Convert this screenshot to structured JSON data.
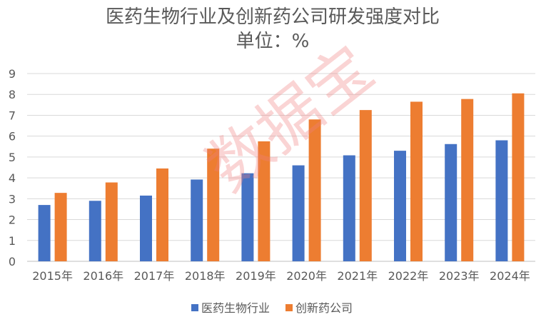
{
  "chart_data": {
    "type": "bar",
    "title": "医药生物行业及创新药公司研发强度对比",
    "subtitle": "单位：%",
    "categories": [
      "2015年",
      "2016年",
      "2017年",
      "2018年",
      "2019年",
      "2020年",
      "2021年",
      "2022年",
      "2023年",
      "2024年"
    ],
    "series": [
      {
        "name": "医药生物行业",
        "color": "#4472c4",
        "values": [
          2.7,
          2.9,
          3.15,
          3.92,
          4.22,
          4.6,
          5.08,
          5.3,
          5.62,
          5.8
        ]
      },
      {
        "name": "创新药公司",
        "color": "#ed7d31",
        "values": [
          3.28,
          3.78,
          4.45,
          5.4,
          5.75,
          6.8,
          7.25,
          7.65,
          7.78,
          8.05
        ]
      }
    ],
    "ylim": [
      0,
      9
    ],
    "yticks": [
      0,
      1,
      2,
      3,
      4,
      5,
      6,
      7,
      8,
      9
    ],
    "grid": true,
    "legend": "bottom"
  },
  "watermark": "数据宝"
}
